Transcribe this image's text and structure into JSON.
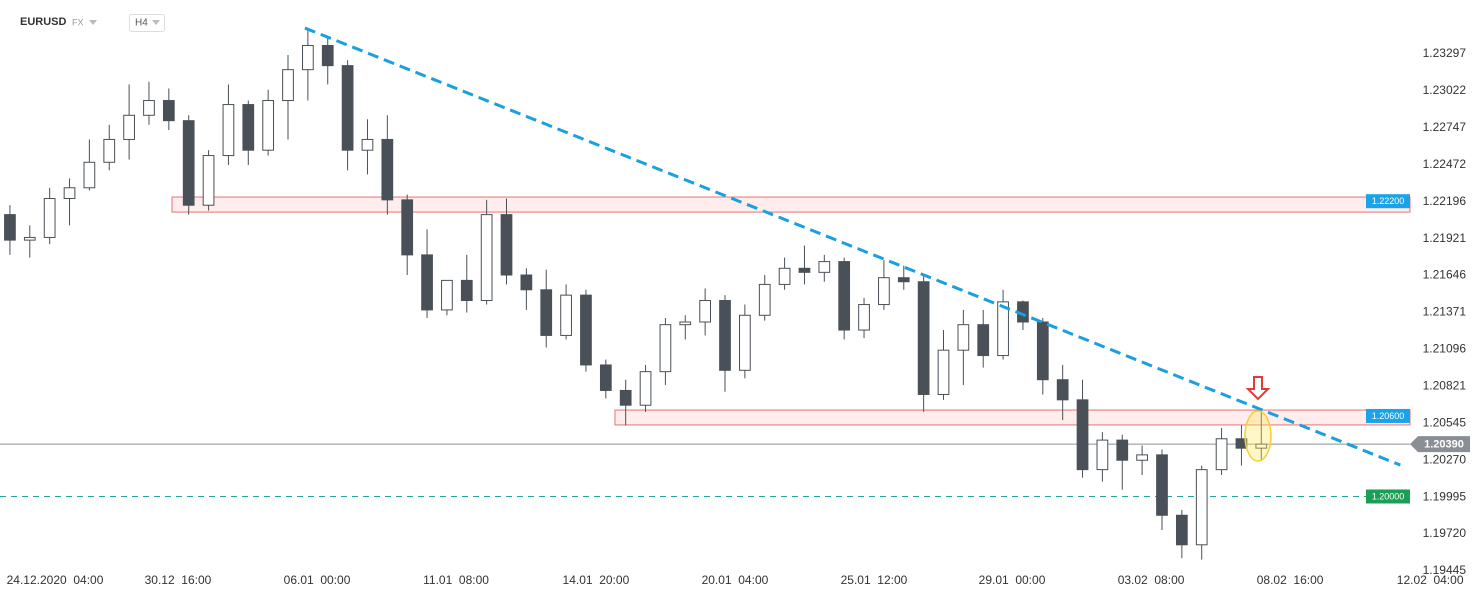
{
  "chart_data": {
    "type": "candlestick",
    "symbol": "EURUSD",
    "market": "FX",
    "timeframe": "H4",
    "up_color": "#ffffff",
    "down_color": "#4a5058",
    "open": [
      1.221,
      1.2191,
      1.2193,
      1.2222,
      1.223,
      1.2249,
      1.2266,
      1.2284,
      1.2295,
      1.228,
      1.2217,
      1.2254,
      1.2292,
      1.2258,
      1.2295,
      1.2318,
      1.2336,
      1.2321,
      1.2258,
      1.2266,
      1.2221,
      1.218,
      1.2139,
      1.2161,
      1.2146,
      1.221,
      1.2165,
      1.2154,
      1.212,
      1.215,
      1.2098,
      1.2079,
      1.2068,
      1.2093,
      1.2128,
      1.213,
      1.2146,
      1.2094,
      1.2135,
      1.2158,
      1.217,
      1.2167,
      1.2175,
      1.2124,
      1.2143,
      1.2163,
      1.216,
      1.2076,
      1.2109,
      1.2128,
      1.2105,
      1.2145,
      1.213,
      1.2087,
      1.2072,
      1.202,
      1.2042,
      1.2027,
      1.2031,
      1.1986,
      1.1964,
      1.202,
      1.2043,
      1.2036
    ],
    "high": [
      1.2217,
      1.2202,
      1.223,
      1.2237,
      1.2266,
      1.2277,
      1.2307,
      1.2309,
      1.2304,
      1.2284,
      1.2258,
      1.2307,
      1.2295,
      1.2303,
      1.2329,
      1.2349,
      1.2342,
      1.2325,
      1.2281,
      1.2284,
      1.2225,
      1.2199,
      1.2161,
      1.218,
      1.2221,
      1.2222,
      1.217,
      1.2169,
      1.2158,
      1.2154,
      1.2102,
      1.2087,
      1.2098,
      1.2133,
      1.2135,
      1.2155,
      1.215,
      1.2143,
      1.2165,
      1.2178,
      1.2187,
      1.218,
      1.2178,
      1.2148,
      1.2176,
      1.2172,
      1.2165,
      1.2124,
      1.2139,
      1.2139,
      1.2154,
      1.2146,
      1.2133,
      1.2098,
      1.2087,
      1.2048,
      1.2046,
      1.2038,
      1.2035,
      1.199,
      1.2023,
      1.2051,
      1.2053,
      1.2064
    ],
    "low": [
      1.218,
      1.2178,
      1.2188,
      1.2202,
      1.2228,
      1.2243,
      1.2251,
      1.2277,
      1.2273,
      1.221,
      1.2213,
      1.2247,
      1.2247,
      1.2254,
      1.2266,
      1.2295,
      1.2307,
      1.2243,
      1.224,
      1.221,
      1.2165,
      1.2133,
      1.2135,
      1.2137,
      1.2143,
      1.2158,
      1.2139,
      1.2111,
      1.2117,
      1.2093,
      1.2073,
      1.2053,
      1.2063,
      1.2083,
      1.2117,
      1.212,
      1.2078,
      1.2088,
      1.2131,
      1.2154,
      1.2158,
      1.216,
      1.2117,
      1.2118,
      1.2139,
      1.2154,
      1.2063,
      1.2072,
      1.2083,
      1.2096,
      1.2102,
      1.2124,
      1.2076,
      1.2057,
      1.2014,
      1.2011,
      1.2005,
      1.2016,
      1.1975,
      1.1954,
      1.1953,
      1.2016,
      1.2023,
      1.2027
    ],
    "close": [
      1.2191,
      1.2193,
      1.2222,
      1.223,
      1.2249,
      1.2266,
      1.2284,
      1.2295,
      1.228,
      1.2217,
      1.2254,
      1.2292,
      1.2258,
      1.2295,
      1.2318,
      1.2336,
      1.2321,
      1.2258,
      1.2266,
      1.2221,
      1.218,
      1.2139,
      1.2161,
      1.2146,
      1.221,
      1.2165,
      1.2154,
      1.212,
      1.215,
      1.2098,
      1.2079,
      1.2068,
      1.2093,
      1.2128,
      1.213,
      1.2146,
      1.2094,
      1.2135,
      1.2158,
      1.217,
      1.2167,
      1.2175,
      1.2124,
      1.2143,
      1.2163,
      1.216,
      1.2076,
      1.2109,
      1.2128,
      1.2105,
      1.2145,
      1.213,
      1.2087,
      1.2072,
      1.202,
      1.2042,
      1.2027,
      1.2031,
      1.1986,
      1.1964,
      1.202,
      1.2043,
      1.2036,
      1.2039
    ],
    "xlim": [
      -0.5,
      72.5
    ],
    "xticks": [
      {
        "value": 2.27,
        "label": "24.12.2020  04:00"
      },
      {
        "value": 8.46,
        "label": "30.12  16:00"
      },
      {
        "value": 15.46,
        "label": "06.01  00:00"
      },
      {
        "value": 22.46,
        "label": "11.01  08:00"
      },
      {
        "value": 29.5,
        "label": "14.01  20:00"
      },
      {
        "value": 36.5,
        "label": "20.01  04:00"
      },
      {
        "value": 43.5,
        "label": "25.01  12:00"
      },
      {
        "value": 50.45,
        "label": "29.01  00:00"
      },
      {
        "value": 57.45,
        "label": "03.02  08:00"
      },
      {
        "value": 64.45,
        "label": "08.02  16:00"
      },
      {
        "value": 71.5,
        "label": "12.02  04:00"
      }
    ],
    "ylim": [
      1.19415,
      1.23699
    ],
    "yticks": [
      1.23297,
      1.23022,
      1.22747,
      1.22472,
      1.22196,
      1.21921,
      1.21646,
      1.21371,
      1.21096,
      1.20821,
      1.20545,
      {
        "value": 1.2027,
        "label": "1.20270"
      },
      1.19995,
      {
        "value": 1.1972,
        "label": "1.19720"
      },
      1.19445
    ],
    "zones": [
      {
        "value": 1.222,
        "label": "1.22200",
        "band": [
          1.22119,
          1.22231
        ],
        "start": 8.16
      },
      {
        "value": 1.206,
        "label": "1.20600",
        "band": [
          1.20533,
          1.20644
        ],
        "start": 30.46
      }
    ],
    "support": {
      "value": 1.2,
      "label": "1.20000"
    },
    "current_price": {
      "value": 1.2039,
      "label": "1.20390"
    },
    "trendline": {
      "x": [
        14.85,
        70
      ],
      "y": [
        1.2349,
        1.20234
      ]
    }
  }
}
